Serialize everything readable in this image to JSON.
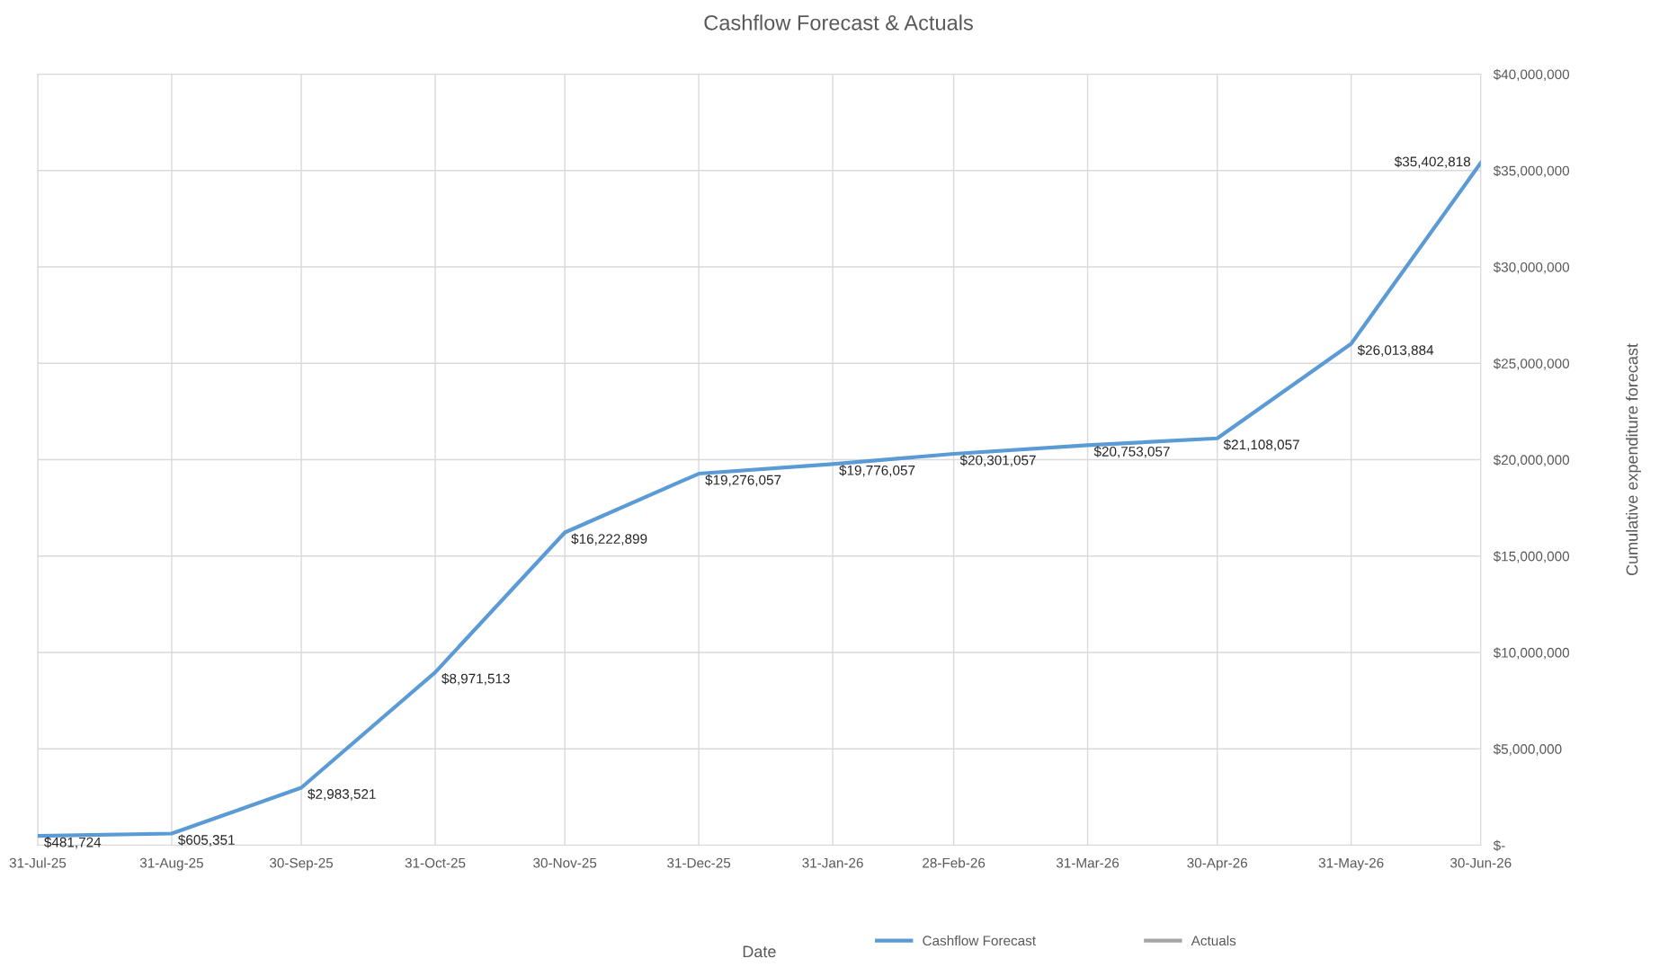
{
  "chart_data": {
    "type": "line",
    "title": "Cashflow Forecast & Actuals",
    "xlabel": "Date",
    "ylabel": "Cumulative expenditure forecast",
    "x": [
      "2025-07-31",
      "2025-08-31",
      "2025-09-30",
      "2025-10-31",
      "2025-11-30",
      "2025-12-31",
      "2026-01-31",
      "2026-02-28",
      "2026-03-31",
      "2026-04-30",
      "2026-05-31",
      "2026-06-30"
    ],
    "series": [
      {
        "name": "Cashflow Forecast",
        "color": "#5b9bd5",
        "values": [
          481724,
          605351,
          2983521,
          8971513,
          16222899,
          19276057,
          19776057,
          20301057,
          20753057,
          21108057,
          26013884,
          35402818
        ],
        "value_labels": [
          "$481,724",
          "$605,351",
          "$2,983,521",
          "$8,971,513",
          "$16,222,899",
          "$19,276,057",
          "$19,776,057",
          "$20,301,057",
          "$20,753,057",
          "$21,108,057",
          "$26,013,884",
          "$35,402,818"
        ]
      },
      {
        "name": "Actuals",
        "color": "#a5a5a5",
        "values": [
          null,
          null,
          null,
          null,
          null,
          null,
          null,
          null,
          null,
          null,
          null,
          null
        ]
      }
    ],
    "xlim": [
      "2025-07-31",
      "2026-06-30"
    ],
    "xticks": [
      {
        "value": "2025-07-31",
        "label": "31-Jul-25"
      },
      {
        "value": "2025-08-31",
        "label": "31-Aug-25"
      },
      {
        "value": "2025-09-30",
        "label": "30-Sep-25"
      },
      {
        "value": "2025-10-31",
        "label": "31-Oct-25"
      },
      {
        "value": "2025-11-30",
        "label": "30-Nov-25"
      },
      {
        "value": "2025-12-31",
        "label": "31-Dec-25"
      },
      {
        "value": "2026-01-31",
        "label": "31-Jan-26"
      },
      {
        "value": "2026-02-28",
        "label": "28-Feb-26"
      },
      {
        "value": "2026-03-31",
        "label": "31-Mar-26"
      },
      {
        "value": "2026-04-30",
        "label": "30-Apr-26"
      },
      {
        "value": "2026-05-31",
        "label": "31-May-26"
      },
      {
        "value": "2026-06-30",
        "label": "30-Jun-26"
      }
    ],
    "ylim": [
      0,
      40000000
    ],
    "yticks": [
      {
        "value": 0,
        "label": "$-"
      },
      {
        "value": 5000000,
        "label": "$5,000,000"
      },
      {
        "value": 10000000,
        "label": "$10,000,000"
      },
      {
        "value": 15000000,
        "label": "$15,000,000"
      },
      {
        "value": 20000000,
        "label": "$20,000,000"
      },
      {
        "value": 25000000,
        "label": "$25,000,000"
      },
      {
        "value": 30000000,
        "label": "$30,000,000"
      },
      {
        "value": 35000000,
        "label": "$35,000,000"
      },
      {
        "value": 40000000,
        "label": "$40,000,000"
      }
    ],
    "grid": true,
    "legend": "bottom right",
    "marker": "none",
    "line_style": "solid"
  }
}
